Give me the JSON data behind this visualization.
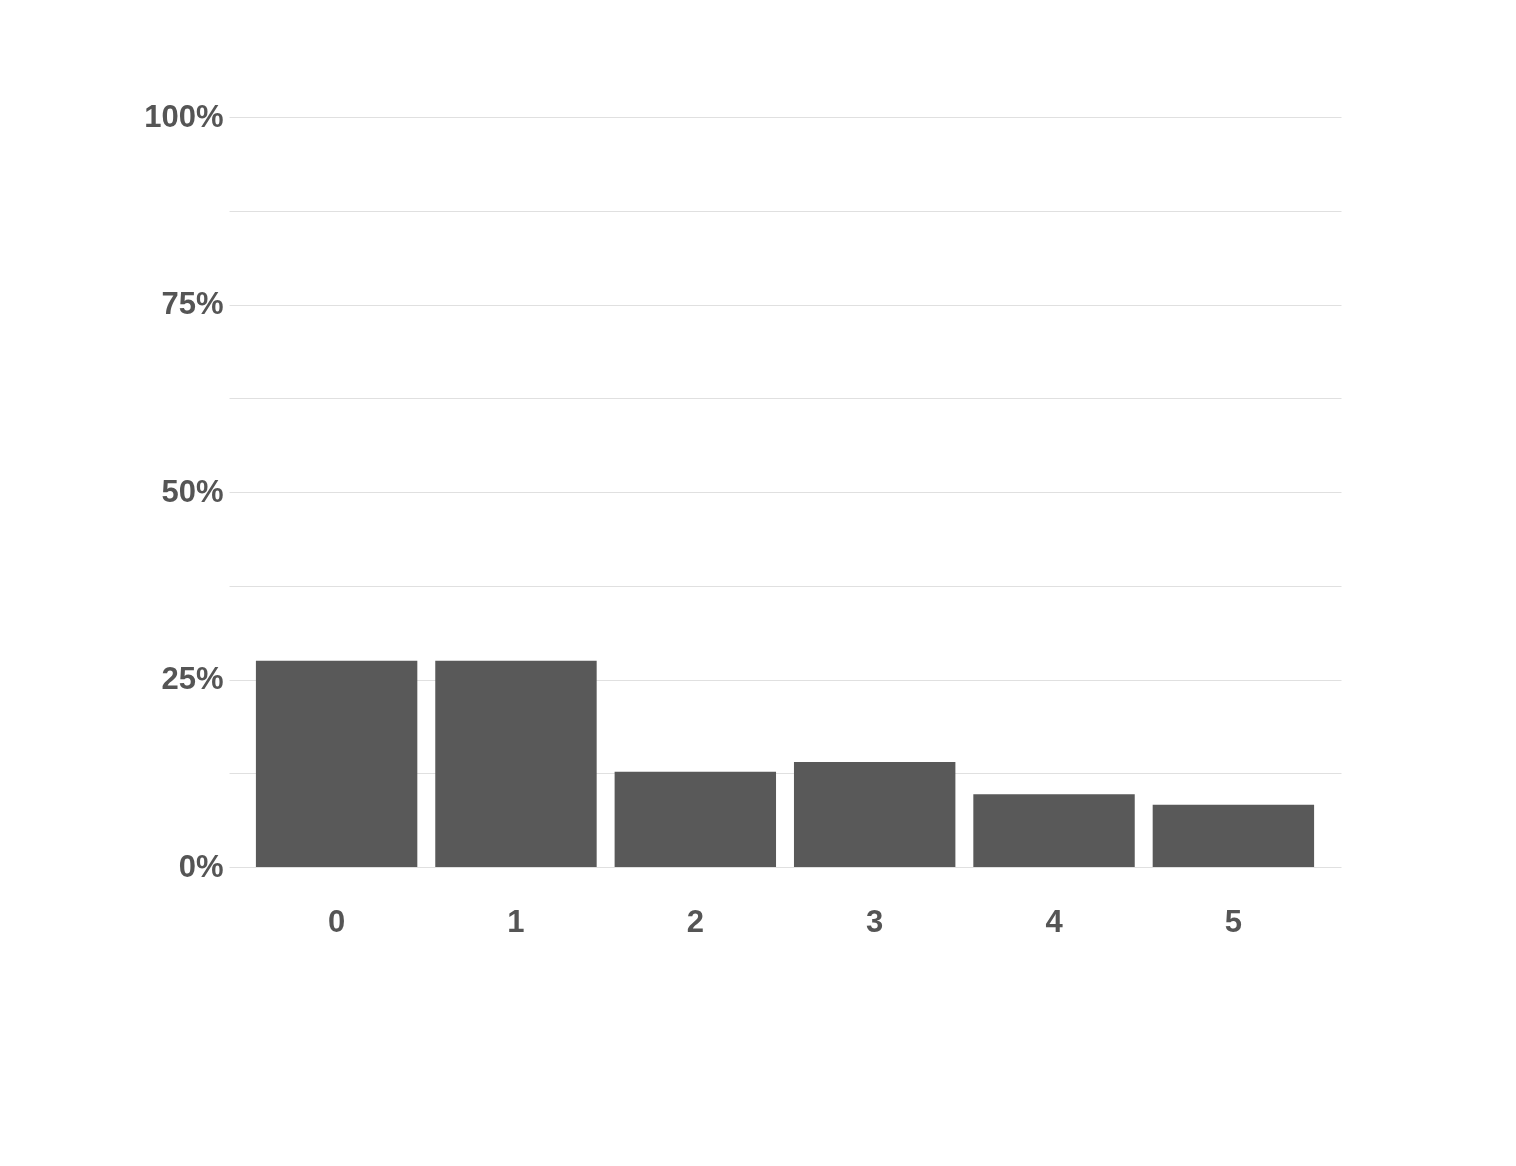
{
  "chart_data": {
    "type": "bar",
    "categories": [
      "0",
      "1",
      "2",
      "3",
      "4",
      "5"
    ],
    "values": [
      27.5,
      27.5,
      12.7,
      14.0,
      9.7,
      8.3
    ],
    "color": "#595959",
    "ylim": [
      0,
      100
    ],
    "yticks": [
      {
        "value": 0,
        "label": "0%"
      },
      {
        "value": 12.5,
        "label": null
      },
      {
        "value": 25,
        "label": "25%"
      },
      {
        "value": 37.5,
        "label": null
      },
      {
        "value": 50,
        "label": "50%"
      },
      {
        "value": 62.5,
        "label": null
      },
      {
        "value": 75,
        "label": "75%"
      },
      {
        "value": 87.5,
        "label": null
      },
      {
        "value": 100,
        "label": "100%"
      }
    ],
    "grid": "y"
  }
}
